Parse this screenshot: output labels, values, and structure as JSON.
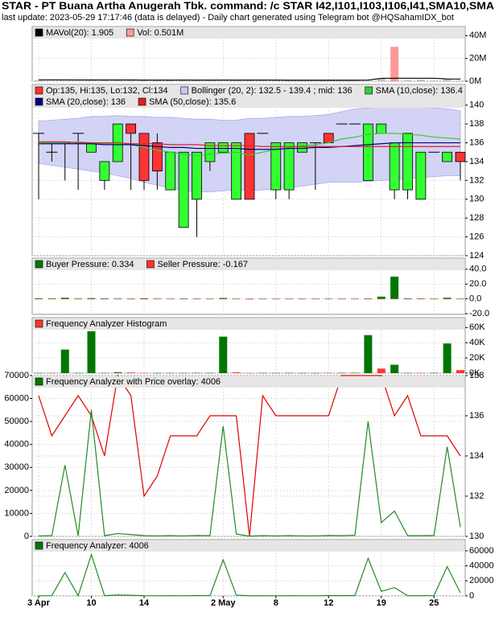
{
  "header": {
    "title": "STAR - PT Buana Artha Anugerah Tbk. command: /c STAR I42,I101,I103,I106,I41,SMA10,SMA",
    "subtitle": "last update: 2023-05-29 17:17:46 (data is delayed) - Daily chart generated using Telegram bot @HQSahamIDX_bot"
  },
  "chart_data": [
    {
      "type": "bar",
      "ylim": [
        0,
        48
      ],
      "yticks": [
        {
          "value": 0,
          "label": "0M"
        },
        {
          "value": 20,
          "label": "20M"
        },
        {
          "value": 40,
          "label": "40M"
        }
      ],
      "grid": true,
      "series": [
        {
          "name": "MAVol(20): 1.905",
          "type": "line",
          "color": "#000000",
          "values": [
            1.2,
            1.2,
            1.2,
            1.1,
            1.1,
            1.1,
            1.1,
            1.1,
            1.0,
            1.0,
            1.0,
            1.0,
            1.0,
            1.0,
            1.0,
            1.0,
            1.0,
            1.0,
            1.0,
            0.9,
            0.9,
            0.9,
            0.9,
            0.9,
            0.9,
            1.0,
            2.5,
            2.6,
            2.6,
            2.6,
            2.6,
            2.0,
            1.905
          ]
        },
        {
          "name": "Vol: 0.501M",
          "type": "bar",
          "color": "#ff9999",
          "values": [
            0.8,
            0.3,
            0.5,
            0.4,
            0.6,
            0.9,
            1.2,
            1.5,
            1.4,
            0.8,
            1.1,
            1.6,
            1.3,
            0.7,
            0.4,
            1.2,
            1.5,
            0.6,
            0.9,
            0.8,
            0.4,
            0.5,
            0.7,
            0.3,
            0.3,
            0.6,
            2.6,
            30.2,
            1.0,
            1.4,
            0.6,
            1.8,
            0.501
          ],
          "colors": [
            "#c0c0c0",
            "#c0c0c0",
            "#c0c0c0",
            "#c0c0c0",
            "#c0c0c0",
            "#c0c0c0",
            "#c0c0c0",
            "#c0c0c0",
            "#c0c0c0",
            "#c0c0c0",
            "#c0c0c0",
            "#c0c0c0",
            "#c0c0c0",
            "#c0c0c0",
            "#c0c0c0",
            "#c0c0c0",
            "#c0c0c0",
            "#c0c0c0",
            "#c0c0c0",
            "#c0c0c0",
            "#c0c0c0",
            "#c0c0c0",
            "#c0c0c0",
            "#c0c0c0",
            "#c0c0c0",
            "#c0c0c0",
            "#c0c0c0",
            "#ff9999",
            "#c0c0c0",
            "#c0c0c0",
            "#c0c0c0",
            "#c0c0c0",
            "#ff9999"
          ]
        }
      ]
    },
    {
      "type": "candlestick",
      "name": "Op:135, Hi:135, Lo:132, Cl:134",
      "up_color": "#33ff33",
      "down_color": "#ff3333",
      "ylim": [
        124,
        142.2
      ],
      "yticks": [
        124,
        126,
        128,
        130,
        132,
        134,
        136,
        138,
        140
      ],
      "grid": true,
      "open": [
        137,
        135,
        136,
        137,
        135,
        132,
        134,
        138,
        137,
        136,
        131,
        127,
        130,
        134,
        135,
        130,
        137,
        137,
        131,
        131,
        135,
        136,
        137,
        138,
        138,
        132,
        137,
        131,
        131,
        130,
        135,
        134,
        135
      ],
      "high": [
        137,
        136,
        136,
        137,
        136,
        134,
        138,
        138,
        137,
        137,
        135,
        135,
        135,
        136,
        136,
        136,
        137,
        137,
        136,
        136,
        136,
        136,
        137,
        138,
        138,
        138,
        138,
        136,
        137,
        135,
        135,
        135,
        135
      ],
      "low": [
        130,
        134,
        132,
        131,
        135,
        131,
        134,
        131,
        131,
        131,
        131,
        127,
        126,
        133,
        135,
        130,
        130,
        137,
        130,
        130,
        135,
        131,
        136,
        138,
        138,
        132,
        137,
        130,
        130,
        130,
        135,
        134,
        132
      ],
      "close": [
        137,
        135,
        136,
        137,
        136,
        134,
        138,
        137,
        132,
        133,
        135,
        135,
        135,
        136,
        136,
        136,
        130,
        137,
        136,
        136,
        136,
        136,
        136,
        138,
        138,
        138,
        138,
        136,
        137,
        135,
        135,
        135,
        134
      ],
      "series": [
        {
          "name": "Bollinger (20, 2): 132.5 - 139.4 ; mid: 136",
          "type": "band",
          "color": "#c8c8f4",
          "upper": [
            138.3,
            138.4,
            138.5,
            138.6,
            138.8,
            138.8,
            138.9,
            138.8,
            138.8,
            138.7,
            138.7,
            138.6,
            138.5,
            138.5,
            138.4,
            138.4,
            138.6,
            138.6,
            138.7,
            138.8,
            138.8,
            138.9,
            139.0,
            139.3,
            139.6,
            139.7,
            139.9,
            139.9,
            139.9,
            139.8,
            139.7,
            139.6,
            139.4
          ],
          "lower": [
            133.8,
            133.6,
            133.4,
            133.2,
            133.0,
            132.8,
            132.5,
            132.2,
            131.8,
            131.5,
            131.2,
            130.9,
            130.8,
            130.8,
            130.9,
            131.0,
            130.9,
            131.0,
            131.1,
            131.2,
            131.4,
            131.6,
            131.8,
            131.8,
            131.8,
            131.9,
            132.0,
            132.1,
            132.2,
            132.3,
            132.4,
            132.5,
            132.5
          ]
        },
        {
          "name": "SMA (10,close): 136.4",
          "type": "line",
          "color": "#33cc33",
          "values": [
            136,
            136,
            136,
            136.1,
            136,
            135.9,
            136,
            135.8,
            135.5,
            135.2,
            135.0,
            134.8,
            134.6,
            134.8,
            134.9,
            135.0,
            134.7,
            135.0,
            135.3,
            135.5,
            135.7,
            135.8,
            136.0,
            136.4,
            136.6,
            136.9,
            137.0,
            137.0,
            136.9,
            136.8,
            136.6,
            136.5,
            136.4
          ]
        },
        {
          "name": "SMA (20,close): 136",
          "type": "line",
          "color": "#000080",
          "values": [
            135.9,
            135.9,
            135.9,
            135.9,
            135.9,
            135.8,
            135.8,
            135.8,
            135.7,
            135.6,
            135.5,
            135.5,
            135.4,
            135.4,
            135.4,
            135.4,
            135.3,
            135.3,
            135.3,
            135.4,
            135.4,
            135.5,
            135.5,
            135.6,
            135.7,
            135.8,
            135.9,
            136.0,
            136.0,
            136.0,
            136.0,
            136.0,
            136.0
          ]
        },
        {
          "name": "SMA (50,close): 135.6",
          "type": "line",
          "color": "#dd2222",
          "values": [
            136.1,
            136.1,
            136.1,
            136.0,
            136.0,
            136.0,
            136.0,
            135.9,
            135.9,
            135.9,
            135.8,
            135.8,
            135.8,
            135.7,
            135.7,
            135.7,
            135.7,
            135.6,
            135.6,
            135.6,
            135.6,
            135.6,
            135.6,
            135.6,
            135.6,
            135.6,
            135.6,
            135.6,
            135.6,
            135.6,
            135.6,
            135.6,
            135.6
          ]
        }
      ]
    },
    {
      "type": "bar",
      "ylim": [
        -21,
        55
      ],
      "yticks": [
        {
          "value": -20,
          "label": "-20.0"
        },
        {
          "value": 0,
          "label": "0.0"
        },
        {
          "value": 20,
          "label": "20.0"
        },
        {
          "value": 40,
          "label": "40.0"
        }
      ],
      "grid": true,
      "series": [
        {
          "name": "Buyer Pressure: 0.334",
          "color": "#007700",
          "values": [
            0.8,
            0.6,
            1.5,
            0.5,
            1.0,
            0.6,
            0.5,
            0.4,
            0.8,
            0.4,
            0.3,
            0.5,
            0.4,
            0.3,
            1.2,
            0.3,
            0.2,
            0.3,
            0.3,
            0.3,
            0.3,
            0.3,
            0.3,
            0.3,
            0.3,
            0.5,
            3.0,
            30.0,
            0.6,
            0.5,
            0.3,
            1.5,
            0.334
          ]
        },
        {
          "name": "Seller Pressure: -0.167",
          "color": "#ff3333",
          "values": [
            -0.3,
            -0.4,
            -0.2,
            -0.3,
            -0.2,
            -0.4,
            -0.3,
            -0.6,
            -0.5,
            -0.4,
            -0.3,
            -0.2,
            -0.3,
            -0.2,
            -0.2,
            -0.5,
            -0.8,
            -0.2,
            -0.3,
            -0.2,
            -0.2,
            -0.2,
            -0.3,
            -0.2,
            -0.2,
            -0.3,
            -0.5,
            -0.4,
            -0.2,
            -0.3,
            -0.2,
            -0.3,
            -0.167
          ]
        }
      ]
    },
    {
      "type": "bar",
      "title": "Frequency Analyzer Histogram",
      "title_color": "#ff3333",
      "ylim": [
        0,
        73000
      ],
      "yticks": [
        {
          "value": 0,
          "label": "0K"
        },
        {
          "value": 20000,
          "label": "20K"
        },
        {
          "value": 40000,
          "label": "40K"
        },
        {
          "value": 60000,
          "label": "60K"
        }
      ],
      "grid": true,
      "series": [
        {
          "color": "#007700",
          "values": [
            200,
            300,
            31000,
            200,
            55000,
            300,
            1200,
            800,
            300,
            200,
            300,
            200,
            400,
            300,
            48000,
            1000,
            100,
            300,
            200,
            300,
            200,
            200,
            400,
            300,
            500,
            50000,
            6000,
            11000,
            300,
            300,
            400,
            39000,
            4006
          ],
          "colors": [
            "#007700",
            "#ff3333",
            "#007700",
            "#007700",
            "#007700",
            "#007700",
            "#007700",
            "#ff3333",
            "#ff3333",
            "#007700",
            "#007700",
            "#007700",
            "#007700",
            "#007700",
            "#007700",
            "#ff3333",
            "#ff3333",
            "#007700",
            "#007700",
            "#007700",
            "#007700",
            "#007700",
            "#ff3333",
            "#007700",
            "#007700",
            "#007700",
            "#ff3333",
            "#007700",
            "#007700",
            "#ff3333",
            "#007700",
            "#007700",
            "#ff3333"
          ]
        }
      ]
    },
    {
      "type": "line",
      "title": "Frequency Analyzer with Price overlay: 4006",
      "title_color": "#007700",
      "ylim": [
        0,
        70000
      ],
      "yticks": [
        0,
        10000,
        20000,
        30000,
        40000,
        50000,
        60000,
        70000
      ],
      "y2lim": [
        130,
        138
      ],
      "y2ticks": [
        130,
        132,
        134,
        136,
        138
      ],
      "grid": true,
      "series": [
        {
          "color": "#e00000",
          "axis": "y2",
          "values": [
            137,
            135,
            136,
            137,
            136,
            134,
            138,
            137,
            132,
            133,
            135,
            135,
            135,
            136,
            136,
            136,
            130,
            137,
            136,
            136,
            136,
            136,
            136,
            138,
            138,
            138,
            138,
            136,
            137,
            135,
            135,
            135,
            134
          ]
        },
        {
          "color": "#228b22",
          "values": [
            200,
            300,
            31000,
            200,
            55000,
            300,
            1200,
            800,
            300,
            200,
            300,
            200,
            400,
            300,
            48000,
            1000,
            100,
            300,
            200,
            300,
            200,
            200,
            400,
            300,
            500,
            50000,
            6000,
            11000,
            300,
            300,
            400,
            39000,
            4006
          ]
        }
      ]
    },
    {
      "type": "line",
      "title": "Frequency Analyzer: 4006",
      "title_color": "#007700",
      "ylim": [
        0,
        75000
      ],
      "yticks": [
        0,
        20000,
        40000,
        60000
      ],
      "grid": true,
      "categories": [
        "3 Apr",
        null,
        null,
        null,
        "10",
        null,
        null,
        null,
        "14",
        null,
        null,
        null,
        null,
        null,
        "2 May",
        null,
        null,
        null,
        "8",
        null,
        null,
        null,
        "12",
        null,
        null,
        null,
        "19",
        null,
        null,
        null,
        "25",
        null,
        null
      ],
      "series": [
        {
          "color": "#228b22",
          "values": [
            200,
            300,
            31000,
            200,
            55000,
            300,
            1200,
            800,
            300,
            200,
            300,
            200,
            400,
            300,
            48000,
            1000,
            100,
            300,
            200,
            300,
            200,
            200,
            400,
            300,
            500,
            50000,
            6000,
            11000,
            300,
            300,
            400,
            39000,
            4006
          ]
        }
      ]
    }
  ]
}
